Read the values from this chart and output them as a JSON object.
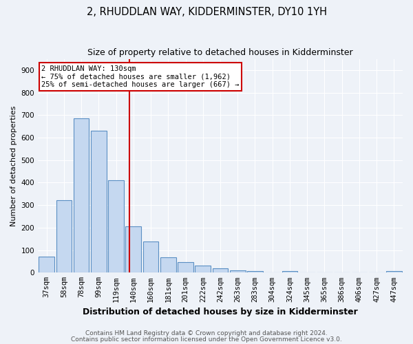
{
  "title": "2, RHUDDLAN WAY, KIDDERMINSTER, DY10 1YH",
  "subtitle": "Size of property relative to detached houses in Kidderminster",
  "xlabel": "Distribution of detached houses by size in Kidderminster",
  "ylabel": "Number of detached properties",
  "categories": [
    "37sqm",
    "58sqm",
    "78sqm",
    "99sqm",
    "119sqm",
    "140sqm",
    "160sqm",
    "181sqm",
    "201sqm",
    "222sqm",
    "242sqm",
    "263sqm",
    "283sqm",
    "304sqm",
    "324sqm",
    "345sqm",
    "365sqm",
    "386sqm",
    "406sqm",
    "427sqm",
    "447sqm"
  ],
  "values": [
    70,
    322,
    685,
    630,
    410,
    207,
    137,
    68,
    47,
    32,
    18,
    11,
    7,
    2,
    8,
    2,
    2,
    0,
    2,
    0,
    8
  ],
  "bar_color": "#c5d8f0",
  "bar_edge_color": "#5a8fc3",
  "vline_x": 4.78,
  "vline_color": "#cc0000",
  "annotation_text": "2 RHUDDLAN WAY: 130sqm\n← 75% of detached houses are smaller (1,962)\n25% of semi-detached houses are larger (667) →",
  "annotation_box_color": "#ffffff",
  "annotation_box_edge": "#cc0000",
  "ylim": [
    0,
    950
  ],
  "yticks": [
    0,
    100,
    200,
    300,
    400,
    500,
    600,
    700,
    800,
    900
  ],
  "footer_line1": "Contains HM Land Registry data © Crown copyright and database right 2024.",
  "footer_line2": "Contains public sector information licensed under the Open Government Licence v3.0.",
  "background_color": "#eef2f8",
  "title_fontsize": 10.5,
  "subtitle_fontsize": 9,
  "xlabel_fontsize": 9,
  "ylabel_fontsize": 8,
  "tick_fontsize": 7.5,
  "annotation_fontsize": 7.5,
  "footer_fontsize": 6.5
}
